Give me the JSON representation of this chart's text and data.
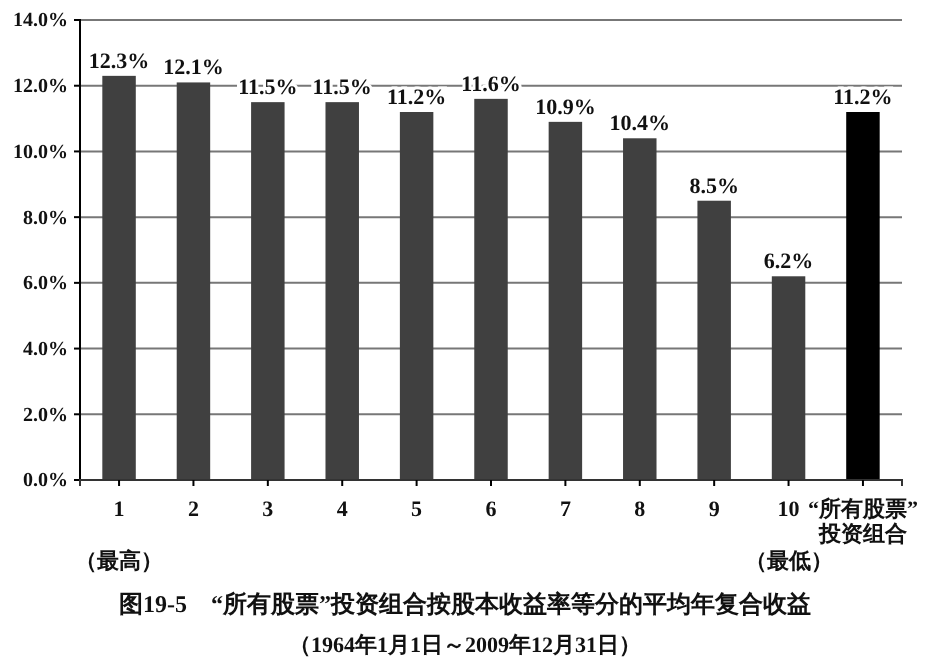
{
  "chart_data": {
    "type": "bar",
    "title": "图19-5　“所有股票”投资组合按股本收益率等分的平均年复合收益",
    "subtitle": "（1964年1月1日～2009年12月31日）",
    "categories": [
      "1",
      "2",
      "3",
      "4",
      "5",
      "6",
      "7",
      "8",
      "9",
      "10",
      "“所有股票”投资组合"
    ],
    "values": [
      12.3,
      12.1,
      11.5,
      11.5,
      11.2,
      11.6,
      10.9,
      10.4,
      8.5,
      6.2,
      11.2
    ],
    "value_labels": [
      "12.3%",
      "12.1%",
      "11.5%",
      "11.5%",
      "11.2%",
      "11.6%",
      "10.9%",
      "10.4%",
      "8.5%",
      "6.2%",
      "11.2%"
    ],
    "colors": [
      "#404040",
      "#404040",
      "#404040",
      "#404040",
      "#404040",
      "#404040",
      "#404040",
      "#404040",
      "#404040",
      "#404040",
      "#000000"
    ],
    "ylim": [
      0,
      14
    ],
    "yticks": [
      {
        "value": 0,
        "label": "0.0%"
      },
      {
        "value": 2,
        "label": "2.0%"
      },
      {
        "value": 4,
        "label": "4.0%"
      },
      {
        "value": 6,
        "label": "6.0%"
      },
      {
        "value": 8,
        "label": "8.0%"
      },
      {
        "value": 10,
        "label": "10.0%"
      },
      {
        "value": 12,
        "label": "12.0%"
      },
      {
        "value": 14,
        "label": "14.0%"
      }
    ],
    "grid": "y",
    "annotations": [
      "（最高）",
      "（最低）"
    ]
  }
}
